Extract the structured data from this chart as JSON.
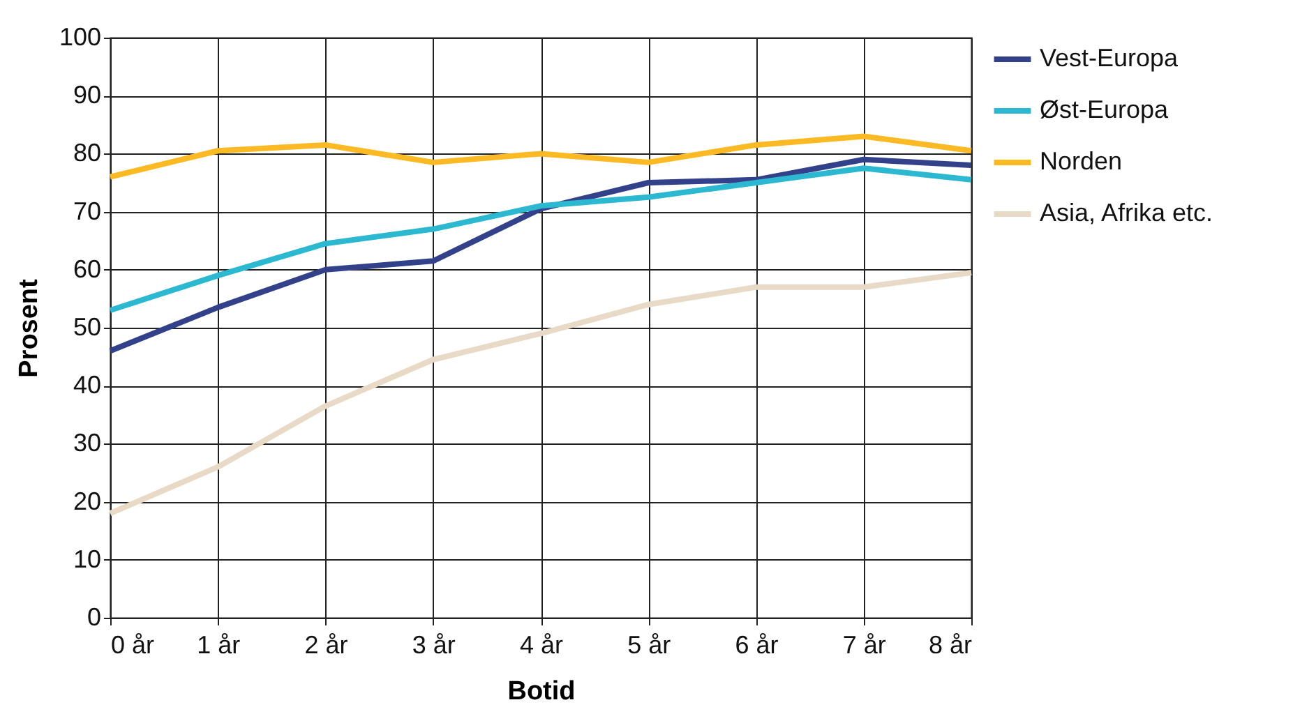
{
  "chart_data": {
    "type": "line",
    "xlabel": "Botid",
    "ylabel": "Prosent",
    "categories": [
      "0 år",
      "1 år",
      "2 år",
      "3 år",
      "4 år",
      "5 år",
      "6 år",
      "7 år",
      "8 år"
    ],
    "series": [
      {
        "name": "Vest-Europa",
        "color": "#33418a",
        "values": [
          46,
          53.5,
          60,
          61.5,
          70.5,
          75,
          75.5,
          79,
          78
        ]
      },
      {
        "name": "Øst-Europa",
        "color": "#2bb8d0",
        "values": [
          53,
          59,
          64.5,
          67,
          71,
          72.5,
          75,
          77.5,
          75.5
        ]
      },
      {
        "name": "Norden",
        "color": "#fbb923",
        "values": [
          76,
          80.5,
          81.5,
          78.5,
          80,
          78.5,
          81.5,
          83,
          80.5
        ]
      },
      {
        "name": "Asia, Afrika etc.",
        "color": "#e8dac6",
        "values": [
          18,
          26,
          36.5,
          44.5,
          49,
          54,
          57,
          57,
          59.5
        ]
      }
    ],
    "ylim": [
      0,
      100
    ],
    "yticks": [
      0,
      10,
      20,
      30,
      40,
      50,
      60,
      70,
      80,
      90,
      100
    ],
    "grid": true,
    "legend": "top right",
    "marker": "none",
    "line_style": "solid"
  }
}
